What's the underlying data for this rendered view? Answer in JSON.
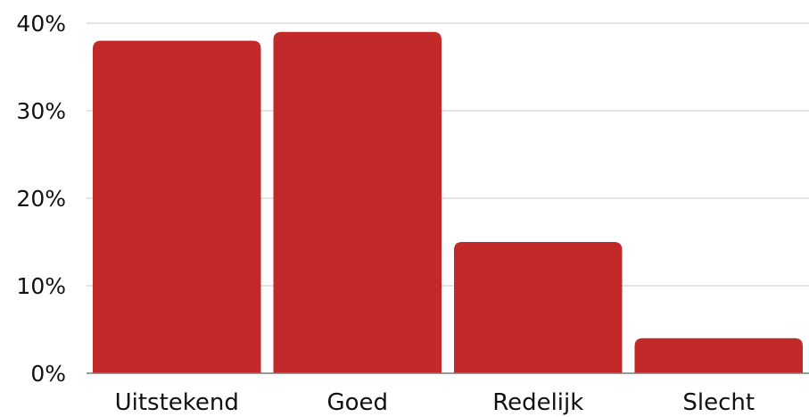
{
  "chart_data": {
    "type": "bar",
    "categories": [
      "Uitstekend",
      "Goed",
      "Redelijk",
      "Slecht"
    ],
    "values": [
      38,
      39,
      15,
      4
    ],
    "ylim": [
      0,
      40
    ],
    "y_ticks": [
      0,
      10,
      20,
      30,
      40
    ],
    "y_tick_labels": [
      "0%",
      "10%",
      "20%",
      "30%",
      "40%"
    ],
    "unit": "%",
    "bar_color": "#c22a2a",
    "grid": true,
    "legend": "none"
  }
}
